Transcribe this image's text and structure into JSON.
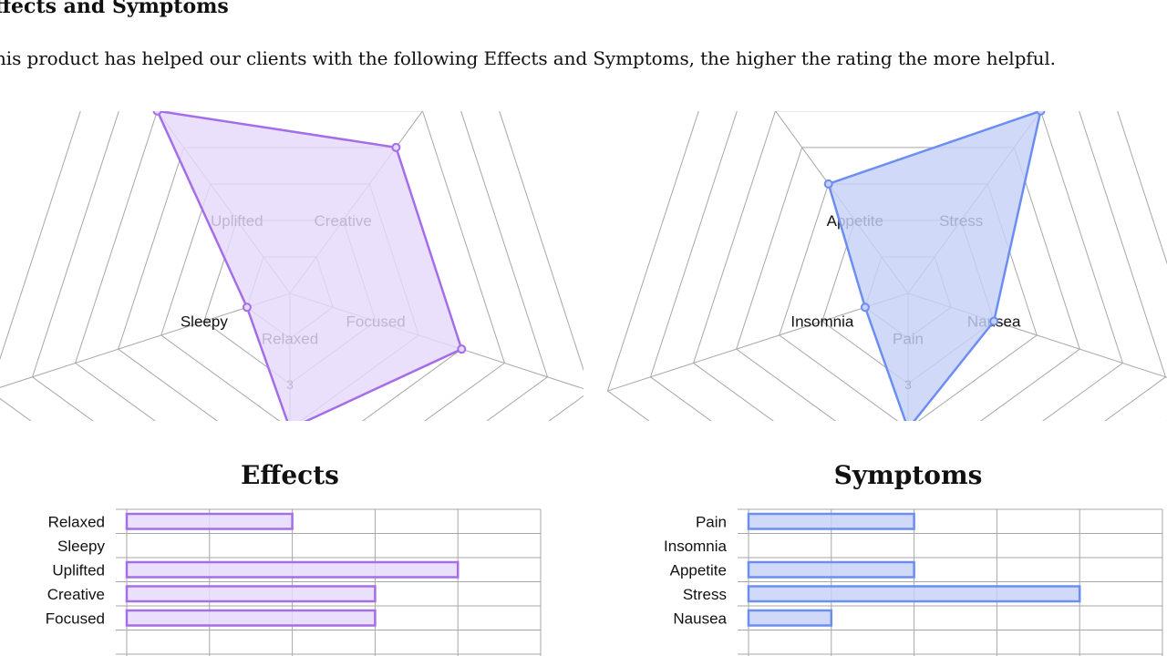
{
  "page": {
    "section_heading": "ffects and Symptoms",
    "intro": "his product has helped our clients with the following Effects and Symptoms, the higher the rating the more helpful."
  },
  "colors": {
    "effects_stroke": "#a46ee8",
    "effects_fill": "#e6d9fb",
    "symptoms_stroke": "#6c8ef0",
    "symptoms_fill": "#c6d2f7",
    "grid": "#a7a7a7"
  },
  "chart_data": [
    {
      "type": "radar",
      "id": "effects-radar",
      "categories": [
        "Relaxed",
        "Sleepy",
        "Uplifted",
        "Creative",
        "Focused"
      ],
      "values": [
        2,
        0,
        4,
        3,
        3
      ],
      "tick_label": "3",
      "scale_max": 5,
      "grid_levels": 5
    },
    {
      "type": "radar",
      "id": "symptoms-radar",
      "categories": [
        "Pain",
        "Insomnia",
        "Appetite",
        "Stress",
        "Nausea"
      ],
      "values": [
        2,
        0,
        2,
        4,
        1
      ],
      "tick_label": "3",
      "scale_max": 5,
      "grid_levels": 5
    },
    {
      "type": "bar",
      "id": "effects-bar",
      "title": "Effects",
      "orientation": "horizontal",
      "categories": [
        "Relaxed",
        "Sleepy",
        "Uplifted",
        "Creative",
        "Focused"
      ],
      "values": [
        2,
        0,
        4,
        3,
        3
      ],
      "xlim": [
        0,
        5
      ],
      "grid": true
    },
    {
      "type": "bar",
      "id": "symptoms-bar",
      "title": "Symptoms",
      "orientation": "horizontal",
      "categories": [
        "Pain",
        "Insomnia",
        "Appetite",
        "Stress",
        "Nausea"
      ],
      "values": [
        2,
        0,
        2,
        4,
        1
      ],
      "xlim": [
        0,
        5
      ],
      "grid": true
    }
  ]
}
